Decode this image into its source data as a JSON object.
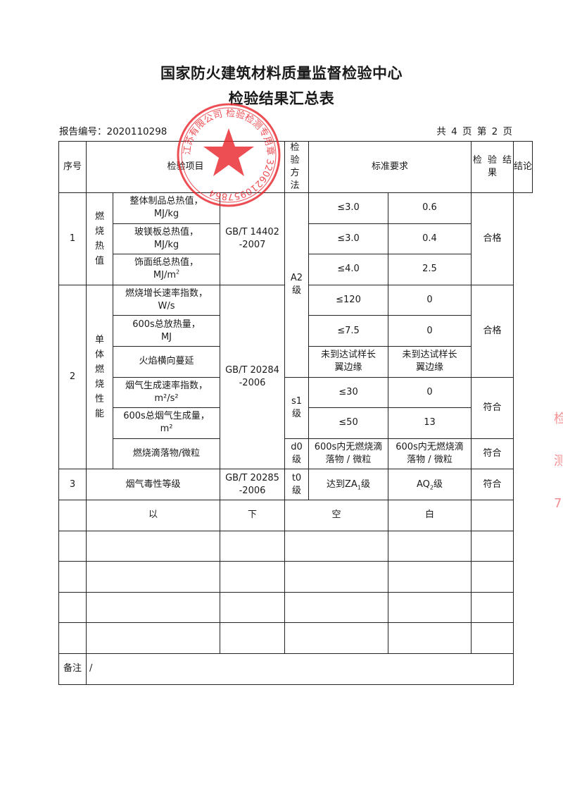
{
  "header": {
    "title": "国家防火建筑材料质量监督检验中心",
    "subtitle": "检验结果汇总表",
    "report_no": "报告编号：2020110298",
    "page_info": "共 4 页 第 2 页"
  },
  "columns": {
    "no": "序号",
    "item": "检验项目",
    "method": "检验方法",
    "standard": "标准要求",
    "result": "检 验 结 果",
    "conclusion": "结论"
  },
  "group1": {
    "no": "1",
    "name": "燃烧热值",
    "method": "GB/T 14402 -2007",
    "grade": "A2 级",
    "conclusion": "合格",
    "rows": [
      {
        "item": "整体制品总热值，",
        "unit": "MJ/kg",
        "standard": "≤3.0",
        "result": "0.6"
      },
      {
        "item": "玻镁板总热值，",
        "unit": "MJ/kg",
        "standard": "≤3.0",
        "result": "0.4"
      },
      {
        "item": "饰面纸总热值，",
        "unit": "MJ/m",
        "unit_sup": "2",
        "standard": "≤4.0",
        "result": "2.5"
      }
    ]
  },
  "group2": {
    "no": "2",
    "name": "单体燃烧性能",
    "method": "GB/T 20284 -2006",
    "conclusion_a": "合格",
    "grade_s": "s1 级",
    "conclusion_s": "符合",
    "grade_d": "d0 级",
    "conclusion_d": "符合",
    "rows": [
      {
        "item": "燃烧增长速率指数，",
        "unit": "W/s",
        "standard": "≤120",
        "result": "0"
      },
      {
        "item": "600s总放热量，",
        "unit": "MJ",
        "standard": "≤7.5",
        "result": "0"
      },
      {
        "item": "火焰横向蔓延",
        "standard": "未到达试样长翼边缘",
        "result": "未到达试样长翼边缘"
      },
      {
        "item": "烟气生成速率指数，",
        "unit": "m²/s²",
        "standard": "≤30",
        "result": "0"
      },
      {
        "item": "600s总烟气生成量，",
        "unit": "m²",
        "standard": "≤50",
        "result": "13"
      },
      {
        "item": "燃烧滴落物/微粒",
        "standard": "600s内无燃烧滴落物 / 微粒",
        "result": "600s内无燃烧滴落物 / 微粒"
      }
    ]
  },
  "group3": {
    "no": "3",
    "item": "烟气毒性等级",
    "method": "GB/T 20285 -2006",
    "grade": "t0 级",
    "standard_pre": "达到ZA",
    "standard_sub": "1",
    "standard_post": "级",
    "result_pre": "AQ",
    "result_sub": "2",
    "result_post": "级",
    "conclusion": "符合"
  },
  "blank_row": {
    "c1": "以",
    "c2": "下",
    "c3": "空",
    "c4": "白"
  },
  "remarks": {
    "label": "备注",
    "value": "/"
  },
  "stamp": {
    "text": "江苏…有限公司 检验检测专用章 3206210957864",
    "color": "#e8232a"
  }
}
